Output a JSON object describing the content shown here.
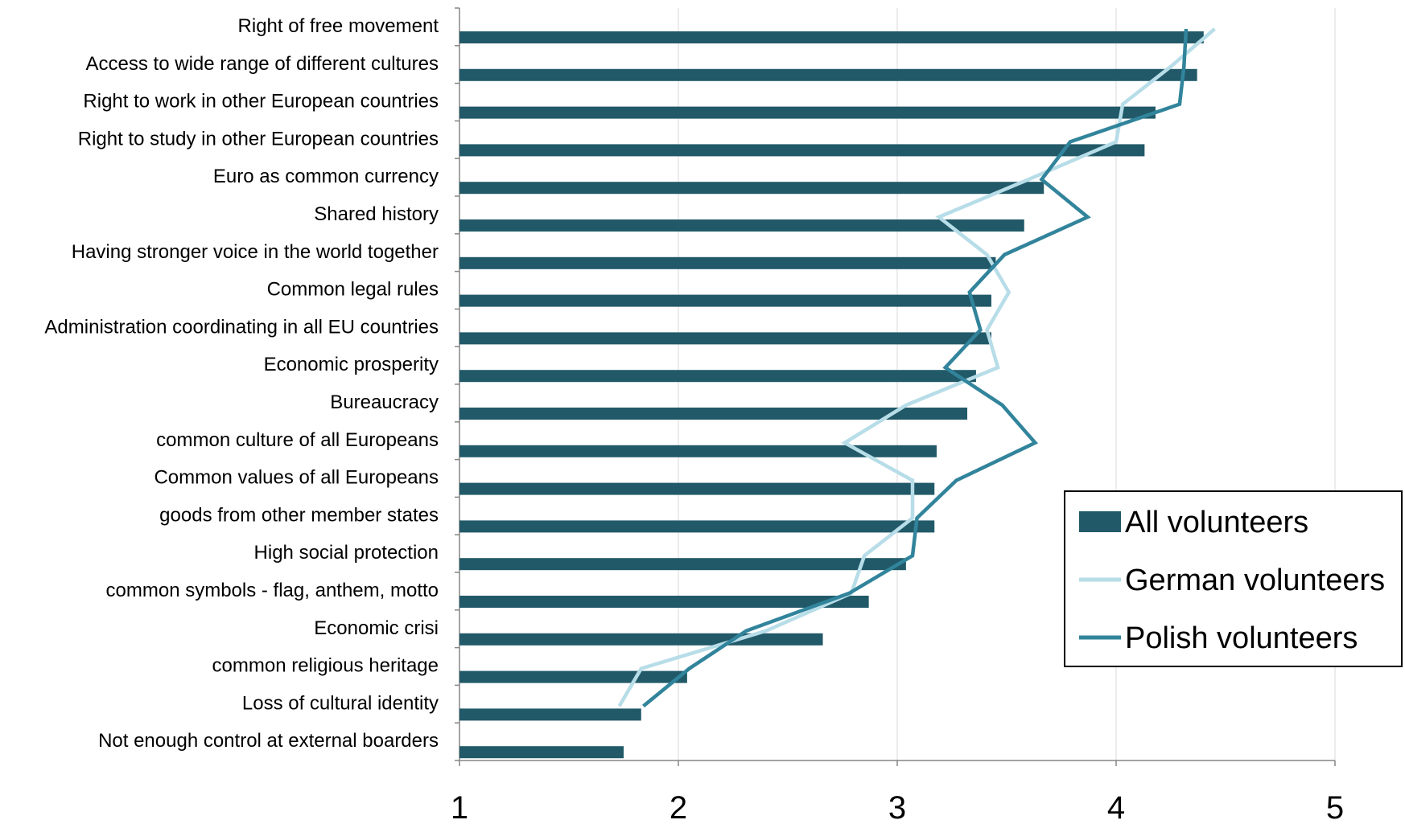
{
  "chart_data": {
    "type": "bar",
    "orientation": "horizontal",
    "categories": [
      "Right of free movement",
      "Access to wide range of different cultures",
      "Right to work in other European countries",
      "Right to study in other European countries",
      "Euro as common currency",
      "Shared history",
      "Having stronger voice in the world together",
      "Common legal rules",
      "Administration coordinating in all EU countries",
      "Economic prosperity",
      "Bureaucracy",
      "common culture of all Europeans",
      "Common values of all Europeans",
      "goods from other member states",
      "High social protection",
      "common symbols - flag, anthem, motto",
      "Economic crisi",
      "common religious heritage",
      "Loss of cultural identity",
      "Not enough control at external boarders"
    ],
    "series": [
      {
        "name": "All volunteers",
        "kind": "bar",
        "color": "#215968",
        "values": [
          4.4,
          4.37,
          4.18,
          4.13,
          3.67,
          3.58,
          3.45,
          3.43,
          3.43,
          3.36,
          3.32,
          3.18,
          3.17,
          3.17,
          3.04,
          2.87,
          2.66,
          2.04,
          1.83,
          1.75
        ]
      },
      {
        "name": "German volunteers",
        "kind": "line",
        "color": "#b7dde8",
        "values": [
          4.45,
          4.25,
          4.03,
          4.0,
          3.6,
          3.19,
          3.41,
          3.51,
          3.41,
          3.46,
          3.04,
          2.76,
          3.07,
          3.07,
          2.85,
          2.79,
          2.4,
          1.83,
          1.73,
          null
        ]
      },
      {
        "name": "Polish volunteers",
        "kind": "line",
        "color": "#31849b",
        "values": [
          4.32,
          4.31,
          4.29,
          3.79,
          3.66,
          3.87,
          3.49,
          3.33,
          3.38,
          3.22,
          3.48,
          3.63,
          3.27,
          3.09,
          3.07,
          2.78,
          2.31,
          2.05,
          1.84,
          null
        ]
      }
    ],
    "xlim": [
      1,
      5
    ],
    "xticks": [
      "1",
      "2",
      "3",
      "4",
      "5"
    ],
    "grid": true,
    "legend_position": "right"
  }
}
